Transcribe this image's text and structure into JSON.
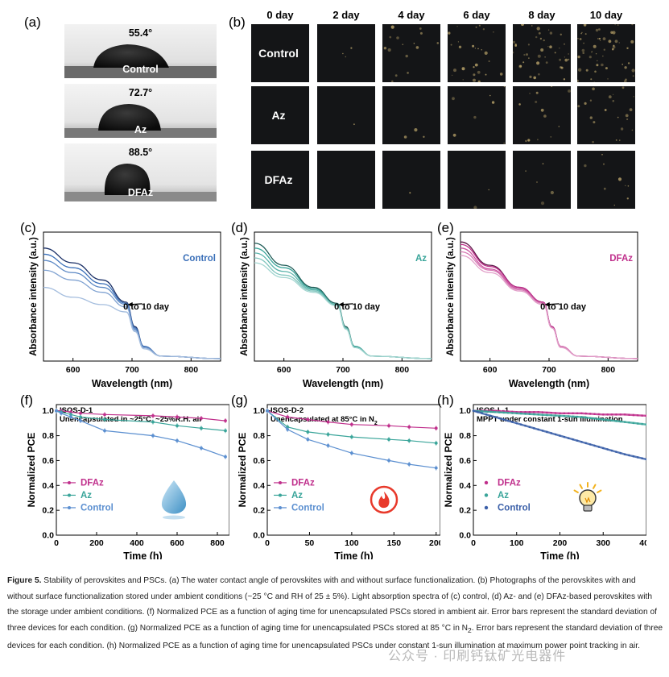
{
  "panel_labels": {
    "a": "(a)",
    "b": "(b)",
    "c": "(c)",
    "d": "(d)",
    "e": "(e)",
    "f": "(f)",
    "g": "(g)",
    "h": "(h)"
  },
  "panel_a": {
    "drops": [
      {
        "angle": "55.4°",
        "name": "Control"
      },
      {
        "angle": "72.7°",
        "name": "Az"
      },
      {
        "angle": "88.5°",
        "name": "DFAz"
      }
    ]
  },
  "panel_b": {
    "days": [
      "0 day",
      "2 day",
      "4 day",
      "6 day",
      "8 day",
      "10 day"
    ],
    "rows": [
      "Control",
      "Az",
      "DFAz"
    ]
  },
  "chart_data": [
    {
      "panel": "c",
      "type": "line",
      "legend": "Control",
      "legend_color": "#3a6fb8",
      "xlabel": "Wavelength (nm)",
      "ylabel": "Absorbance intensity (a.u.)",
      "xlim": [
        550,
        850
      ],
      "xticks": [
        600,
        700,
        800
      ],
      "annotation": "0 to 10 day",
      "series": [
        {
          "x": [
            550,
            600,
            650,
            690,
            705,
            720,
            750,
            850
          ],
          "y": [
            0.92,
            0.8,
            0.66,
            0.48,
            0.28,
            0.12,
            0.04,
            0.02
          ]
        },
        {
          "x": [
            550,
            600,
            650,
            690,
            705,
            720,
            750,
            850
          ],
          "y": [
            0.87,
            0.76,
            0.63,
            0.47,
            0.27,
            0.12,
            0.04,
            0.02
          ]
        },
        {
          "x": [
            550,
            600,
            650,
            690,
            705,
            720,
            750,
            850
          ],
          "y": [
            0.82,
            0.72,
            0.6,
            0.46,
            0.26,
            0.11,
            0.04,
            0.02
          ]
        },
        {
          "x": [
            550,
            600,
            650,
            690,
            705,
            720,
            750,
            850
          ],
          "y": [
            0.74,
            0.66,
            0.56,
            0.44,
            0.25,
            0.11,
            0.04,
            0.02
          ]
        },
        {
          "x": [
            550,
            600,
            650,
            690,
            705,
            720,
            750,
            850
          ],
          "y": [
            0.6,
            0.52,
            0.46,
            0.4,
            0.24,
            0.1,
            0.04,
            0.02
          ]
        }
      ]
    },
    {
      "panel": "d",
      "type": "line",
      "legend": "Az",
      "legend_color": "#3aa59a",
      "xlabel": "Wavelength (nm)",
      "ylabel": "Absorbance intensity (a.u.)",
      "xlim": [
        550,
        850
      ],
      "xticks": [
        600,
        700,
        800
      ],
      "annotation": "0 to 10 day",
      "series": [
        {
          "x": [
            550,
            600,
            650,
            690,
            705,
            720,
            750,
            850
          ],
          "y": [
            0.96,
            0.78,
            0.6,
            0.47,
            0.28,
            0.12,
            0.04,
            0.02
          ]
        },
        {
          "x": [
            550,
            600,
            650,
            690,
            705,
            720,
            750,
            850
          ],
          "y": [
            0.92,
            0.76,
            0.59,
            0.46,
            0.27,
            0.12,
            0.04,
            0.02
          ]
        },
        {
          "x": [
            550,
            600,
            650,
            690,
            705,
            720,
            750,
            850
          ],
          "y": [
            0.88,
            0.73,
            0.58,
            0.46,
            0.27,
            0.11,
            0.04,
            0.02
          ]
        },
        {
          "x": [
            550,
            600,
            650,
            690,
            705,
            720,
            750,
            850
          ],
          "y": [
            0.84,
            0.7,
            0.57,
            0.45,
            0.26,
            0.11,
            0.04,
            0.02
          ]
        },
        {
          "x": [
            550,
            600,
            650,
            690,
            705,
            720,
            750,
            850
          ],
          "y": [
            0.8,
            0.68,
            0.56,
            0.45,
            0.26,
            0.11,
            0.04,
            0.02
          ]
        }
      ]
    },
    {
      "panel": "e",
      "type": "line",
      "legend": "DFAz",
      "legend_color": "#c0308c",
      "xlabel": "Wavelength (nm)",
      "ylabel": "Absorbance intensity (a.u.)",
      "xlim": [
        550,
        850
      ],
      "xticks": [
        600,
        700,
        800
      ],
      "annotation": "0 to 10 day",
      "series": [
        {
          "x": [
            550,
            600,
            650,
            690,
            705,
            720,
            750,
            850
          ],
          "y": [
            0.97,
            0.78,
            0.6,
            0.48,
            0.28,
            0.12,
            0.04,
            0.02
          ]
        },
        {
          "x": [
            550,
            600,
            650,
            690,
            705,
            720,
            750,
            850
          ],
          "y": [
            0.95,
            0.77,
            0.6,
            0.48,
            0.28,
            0.12,
            0.04,
            0.02
          ]
        },
        {
          "x": [
            550,
            600,
            650,
            690,
            705,
            720,
            750,
            850
          ],
          "y": [
            0.92,
            0.75,
            0.59,
            0.47,
            0.27,
            0.12,
            0.04,
            0.02
          ]
        },
        {
          "x": [
            550,
            600,
            650,
            690,
            705,
            720,
            750,
            850
          ],
          "y": [
            0.89,
            0.74,
            0.58,
            0.47,
            0.27,
            0.12,
            0.04,
            0.02
          ]
        },
        {
          "x": [
            550,
            600,
            650,
            690,
            705,
            720,
            750,
            850
          ],
          "y": [
            0.86,
            0.72,
            0.57,
            0.46,
            0.27,
            0.11,
            0.04,
            0.02
          ]
        }
      ]
    },
    {
      "panel": "f",
      "type": "line",
      "title_line1": "ISOS-D-1",
      "title_line2": "Unencapsulated in ~25°C, ~25%R.H. air",
      "xlabel": "Time (h)",
      "ylabel": "Normalized PCE",
      "xlim": [
        0,
        860
      ],
      "ylim": [
        0,
        1.05
      ],
      "xticks": [
        0,
        200,
        400,
        600,
        800
      ],
      "yticks": [
        0,
        0.2,
        0.4,
        0.6,
        0.8,
        1.0
      ],
      "series": [
        {
          "name": "DFAz",
          "color": "#c0308c",
          "x": [
            0,
            24,
            72,
            120,
            240,
            480,
            600,
            720,
            840
          ],
          "y": [
            1.0,
            1.0,
            0.99,
            0.98,
            0.97,
            0.96,
            0.95,
            0.94,
            0.92
          ]
        },
        {
          "name": "Az",
          "color": "#3aa59a",
          "x": [
            0,
            24,
            72,
            120,
            240,
            480,
            600,
            720,
            840
          ],
          "y": [
            1.0,
            0.99,
            0.97,
            0.95,
            0.93,
            0.91,
            0.88,
            0.86,
            0.84
          ]
        },
        {
          "name": "Control",
          "color": "#5b8fd0",
          "x": [
            0,
            24,
            72,
            120,
            240,
            480,
            600,
            720,
            840
          ],
          "y": [
            1.0,
            0.98,
            0.95,
            0.92,
            0.84,
            0.8,
            0.76,
            0.7,
            0.63
          ]
        }
      ]
    },
    {
      "panel": "g",
      "type": "line",
      "title_line1": "ISOS-D-2",
      "title_line2_prefix": "Unencapsulated at 85°C in N",
      "title_line2_sub": "2",
      "xlabel": "Time (h)",
      "ylabel": "Normalized PCE",
      "xlim": [
        0,
        205
      ],
      "ylim": [
        0,
        1.05
      ],
      "xticks": [
        0,
        50,
        100,
        150,
        200
      ],
      "yticks": [
        0,
        0.2,
        0.4,
        0.6,
        0.8,
        1.0
      ],
      "series": [
        {
          "name": "DFAz",
          "color": "#c0308c",
          "x": [
            0,
            24,
            48,
            72,
            100,
            144,
            168,
            200
          ],
          "y": [
            1.0,
            0.95,
            0.93,
            0.91,
            0.89,
            0.88,
            0.87,
            0.86
          ]
        },
        {
          "name": "Az",
          "color": "#3aa59a",
          "x": [
            0,
            24,
            48,
            72,
            100,
            144,
            168,
            200
          ],
          "y": [
            1.0,
            0.87,
            0.83,
            0.81,
            0.79,
            0.77,
            0.76,
            0.74
          ]
        },
        {
          "name": "Control",
          "color": "#5b8fd0",
          "x": [
            0,
            24,
            48,
            72,
            100,
            144,
            168,
            200
          ],
          "y": [
            1.0,
            0.85,
            0.77,
            0.72,
            0.66,
            0.6,
            0.57,
            0.54
          ]
        }
      ]
    },
    {
      "panel": "h",
      "type": "line",
      "title_line1": "ISOS-L-1",
      "title_line2": "MPPT under constant 1-sun illumination",
      "xlabel": "Time (h)",
      "ylabel": "Normalized PCE",
      "xlim": [
        0,
        400
      ],
      "ylim": [
        0,
        1.05
      ],
      "xticks": [
        0,
        100,
        200,
        300,
        400
      ],
      "yticks": [
        0,
        0.2,
        0.4,
        0.6,
        0.8,
        1.0
      ],
      "series": [
        {
          "name": "DFAz",
          "color": "#c0308c",
          "x": [
            0,
            50,
            100,
            150,
            200,
            250,
            300,
            350,
            400
          ],
          "y": [
            1.0,
            1.0,
            0.99,
            0.99,
            0.98,
            0.98,
            0.97,
            0.97,
            0.96
          ]
        },
        {
          "name": "Az",
          "color": "#3aa59a",
          "x": [
            0,
            50,
            100,
            150,
            200,
            250,
            300,
            350,
            400
          ],
          "y": [
            1.0,
            0.99,
            0.98,
            0.97,
            0.96,
            0.95,
            0.93,
            0.91,
            0.89
          ]
        },
        {
          "name": "Control",
          "color": "#3a5fa8",
          "x": [
            0,
            50,
            100,
            150,
            200,
            250,
            300,
            350,
            400
          ],
          "y": [
            1.0,
            0.95,
            0.9,
            0.85,
            0.8,
            0.75,
            0.7,
            0.65,
            0.61
          ]
        }
      ]
    }
  ],
  "caption": {
    "label": "Figure 5.",
    "text": " Stability of perovskites and PSCs. (a) The water contact angle of perovskites with and without surface functionalization. (b) Photographs of the perovskites with and without surface functionalization stored under ambient conditions (~25 °C and RH of 25 ± 5%). Light absorption spectra of (c) control, (d) Az- and (e) DFAz-based perovskites with the storage under ambient conditions. (f) Normalized PCE as a function of aging time for unencapsulated PSCs stored in ambient air. Error bars represent the standard deviation of three devices for each condition. (g) Normalized PCE as a function of aging time for unencapsulated PSCs stored at 85 °C in N",
    "sub": "2",
    "text2": ". Error bars represent the standard deviation of three devices for each condition. (h) Normalized PCE as a function of aging time for unencapsulated PSCs under constant 1-sun illumination at maximum power point tracking in air."
  },
  "watermark": "公众号 · 印刷钙钛矿光电器件"
}
